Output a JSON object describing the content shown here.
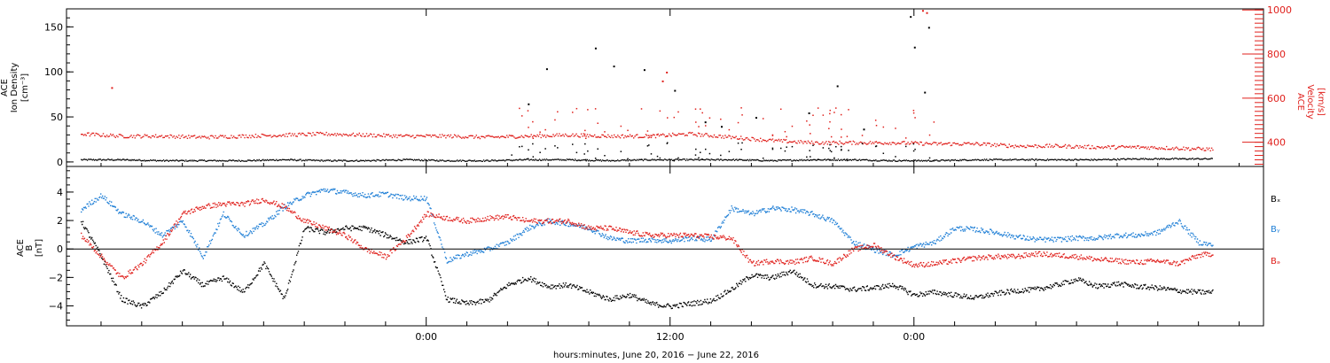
{
  "chart_data": [
    {
      "type": "scatter",
      "panel": "top",
      "ylabel_left": [
        "ACE",
        "Ion Density",
        "[cm⁻³]"
      ],
      "ylabel_right": [
        "ACE",
        "Velocity",
        "[km/s]"
      ],
      "ylim_left": [
        -5,
        170
      ],
      "ylim_right": [
        290,
        1005
      ],
      "left_ticks": [
        0,
        50,
        100,
        150
      ],
      "right_ticks": [
        400,
        600,
        800,
        1000
      ],
      "left_tick_labels": [
        "0",
        "50",
        "100",
        "150"
      ],
      "right_tick_labels": [
        "400",
        "600",
        "800",
        "1000"
      ],
      "x_hours_range": [
        -17.7,
        41.2
      ],
      "series": [
        {
          "name": "Ion Density",
          "color": "#000000",
          "axis": "left",
          "x": [
            -17,
            -15,
            -13,
            -11,
            -9,
            -7,
            -5,
            -3,
            -1,
            1,
            3,
            5,
            7,
            9,
            11,
            13,
            15,
            17,
            19,
            21,
            23,
            25,
            27,
            29,
            31,
            33,
            35,
            37,
            38.7
          ],
          "y": [
            3,
            3,
            2,
            2,
            2,
            3,
            2,
            2,
            3,
            2,
            2,
            3,
            3,
            2,
            3,
            3,
            3,
            2,
            3,
            3,
            2,
            2,
            3,
            3,
            3,
            3,
            4,
            4,
            4
          ]
        },
        {
          "name": "Velocity",
          "color": "#e0201c",
          "axis": "right",
          "x": [
            -17,
            -15,
            -13,
            -11,
            -9,
            -7,
            -5,
            -3,
            -1,
            1,
            3,
            5,
            7,
            9,
            11,
            13,
            15,
            17,
            19,
            21,
            23,
            25,
            27,
            29,
            31,
            33,
            35,
            37,
            38.7
          ],
          "y": [
            440,
            430,
            430,
            425,
            430,
            435,
            440,
            435,
            430,
            430,
            425,
            430,
            435,
            430,
            430,
            440,
            425,
            410,
            400,
            400,
            400,
            395,
            395,
            385,
            385,
            380,
            380,
            375,
            370
          ]
        }
      ],
      "spikes_density": [
        {
          "x": 5.0,
          "y": 65
        },
        {
          "x": 5.9,
          "y": 104
        },
        {
          "x": 8.3,
          "y": 127
        },
        {
          "x": 9.2,
          "y": 107
        },
        {
          "x": 10.7,
          "y": 103
        },
        {
          "x": 12.2,
          "y": 80
        },
        {
          "x": 13.7,
          "y": 45
        },
        {
          "x": 14.5,
          "y": 40
        },
        {
          "x": 16.2,
          "y": 50
        },
        {
          "x": 18.8,
          "y": 55
        },
        {
          "x": 20.2,
          "y": 85
        },
        {
          "x": 21.5,
          "y": 37
        },
        {
          "x": 23.8,
          "y": 162
        },
        {
          "x": 24.0,
          "y": 128
        },
        {
          "x": 24.5,
          "y": 78
        },
        {
          "x": 24.7,
          "y": 150
        }
      ],
      "spikes_velocity": [
        {
          "x": -15.5,
          "y": 650
        },
        {
          "x": 11.8,
          "y": 720
        },
        {
          "x": 11.6,
          "y": 680
        },
        {
          "x": 24.4,
          "y": 1000
        },
        {
          "x": 24.6,
          "y": 990
        }
      ]
    },
    {
      "type": "scatter",
      "panel": "bottom",
      "ylabel_left": [
        "ACE",
        "B",
        "[nT]"
      ],
      "ylim": [
        -5.4,
        5.8
      ],
      "ticks": [
        -4,
        -2,
        0,
        2,
        4
      ],
      "tick_labels": [
        "−4",
        "−2",
        "0",
        "2",
        "4"
      ],
      "x_hours_range": [
        -17.7,
        41.2
      ],
      "legend": [
        "Bₓ",
        "Bᵧ",
        "Bₔ"
      ],
      "legend_colors": [
        "#000000",
        "#1f7fd6",
        "#e0201c"
      ],
      "series": [
        {
          "name": "Bx",
          "color": "#000000",
          "x": [
            -17,
            -16,
            -15,
            -14,
            -13,
            -12,
            -11,
            -10,
            -9,
            -8,
            -7,
            -6,
            -5,
            -4,
            -3,
            -2,
            -1,
            0,
            1,
            2,
            3,
            4,
            5,
            6,
            7,
            8,
            9,
            10,
            11,
            12,
            13,
            14,
            15,
            16,
            17,
            18,
            19,
            20,
            21,
            22,
            23,
            24,
            25,
            26,
            27,
            28,
            29,
            30,
            31,
            32,
            33,
            34,
            35,
            36,
            37,
            38,
            38.7
          ],
          "y": [
            2.0,
            -0.5,
            -3.5,
            -4.0,
            -3.0,
            -1.5,
            -2.5,
            -2.0,
            -3.0,
            -1.0,
            -3.5,
            1.5,
            1.2,
            1.5,
            1.5,
            1.0,
            0.5,
            0.8,
            -3.5,
            -3.8,
            -3.6,
            -2.5,
            -2.0,
            -2.6,
            -2.5,
            -3.0,
            -3.5,
            -3.2,
            -3.8,
            -4.0,
            -3.8,
            -3.6,
            -2.8,
            -1.8,
            -2.0,
            -1.5,
            -2.5,
            -2.6,
            -2.8,
            -2.7,
            -2.5,
            -3.2,
            -3.0,
            -3.2,
            -3.4,
            -3.1,
            -2.9,
            -2.8,
            -2.5,
            -2.1,
            -2.6,
            -2.4,
            -2.6,
            -2.7,
            -2.9,
            -3.0,
            -3.0
          ]
        },
        {
          "name": "By",
          "color": "#1f7fd6",
          "x": [
            -17,
            -16,
            -15,
            -14,
            -13,
            -12,
            -11,
            -10,
            -9,
            -8,
            -7,
            -6,
            -5,
            -4,
            -3,
            -2,
            -1,
            0,
            1,
            2,
            3,
            4,
            5,
            6,
            7,
            8,
            9,
            10,
            11,
            12,
            13,
            14,
            15,
            16,
            17,
            18,
            19,
            20,
            21,
            22,
            23,
            24,
            25,
            26,
            27,
            28,
            29,
            30,
            31,
            32,
            33,
            34,
            35,
            36,
            37,
            38,
            38.7
          ],
          "y": [
            2.8,
            3.8,
            2.5,
            2.0,
            1.0,
            2.0,
            -0.5,
            2.5,
            1.0,
            1.8,
            3.0,
            3.8,
            4.2,
            4.0,
            3.8,
            3.9,
            3.6,
            3.6,
            -0.8,
            -0.3,
            0.0,
            0.5,
            1.5,
            2.0,
            1.8,
            1.5,
            0.8,
            0.6,
            0.7,
            0.6,
            0.8,
            0.7,
            2.9,
            2.5,
            2.9,
            2.8,
            2.5,
            2.0,
            0.5,
            0.0,
            -0.4,
            0.2,
            0.5,
            1.5,
            1.4,
            1.2,
            0.9,
            0.7,
            0.7,
            0.8,
            0.8,
            1.0,
            1.0,
            1.2,
            2.0,
            0.5,
            0.3
          ]
        },
        {
          "name": "Bz",
          "color": "#e0201c",
          "x": [
            -17,
            -16,
            -15,
            -14,
            -13,
            -12,
            -11,
            -10,
            -9,
            -8,
            -7,
            -6,
            -5,
            -4,
            -3,
            -2,
            -1,
            0,
            1,
            2,
            3,
            4,
            5,
            6,
            7,
            8,
            9,
            10,
            11,
            12,
            13,
            14,
            15,
            16,
            17,
            18,
            19,
            20,
            21,
            22,
            23,
            24,
            25,
            26,
            27,
            28,
            29,
            30,
            31,
            32,
            33,
            34,
            35,
            36,
            37,
            38,
            38.7
          ],
          "y": [
            1.0,
            -0.5,
            -2.0,
            -1.0,
            0.5,
            2.5,
            3.0,
            3.2,
            3.2,
            3.5,
            3.0,
            2.0,
            1.5,
            1.0,
            0.0,
            -0.5,
            0.8,
            2.5,
            2.2,
            2.0,
            2.2,
            2.3,
            2.0,
            2.0,
            2.0,
            1.5,
            1.5,
            1.2,
            1.0,
            1.0,
            1.0,
            0.9,
            0.8,
            -1.0,
            -0.8,
            -0.9,
            -0.6,
            -1.0,
            0.0,
            0.3,
            -0.5,
            -1.1,
            -1.0,
            -0.8,
            -0.6,
            -0.5,
            -0.5,
            -0.3,
            -0.4,
            -0.5,
            -0.7,
            -0.8,
            -0.9,
            -0.8,
            -1.0,
            -0.4,
            -0.3
          ]
        }
      ]
    }
  ],
  "x_axis": {
    "tick_hours": [
      0,
      12,
      24
    ],
    "tick_labels": [
      "0:00",
      "12:00",
      "0:00"
    ],
    "minor_tick_hours": [
      -16,
      -14,
      -12,
      -10,
      -8,
      -6,
      -4,
      -2,
      2,
      4,
      6,
      8,
      10,
      14,
      16,
      18,
      20,
      22,
      26,
      28,
      30,
      32,
      34,
      36,
      38,
      40
    ],
    "label": "hours:minutes, June 20, 2016 − June 22, 2016"
  }
}
